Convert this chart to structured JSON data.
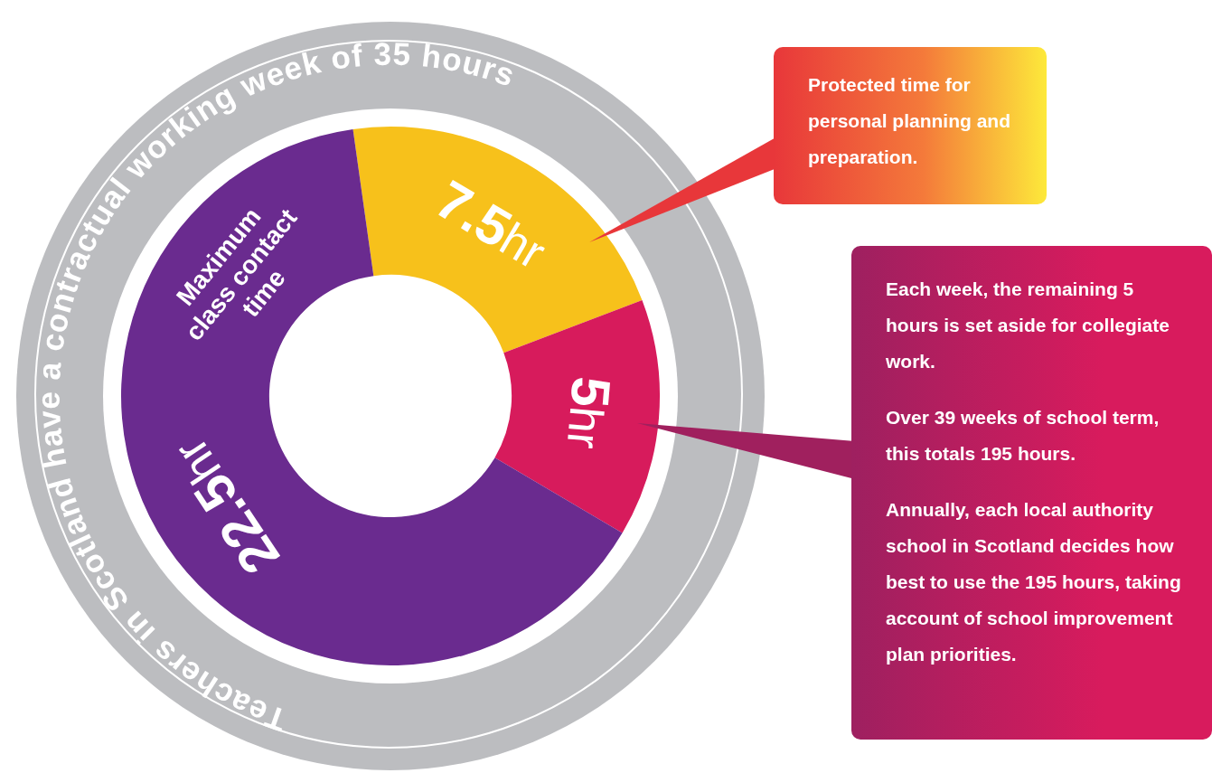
{
  "chart_data": {
    "type": "donut",
    "title": "Teachers in Scotland have a contractual working week of 35 hours",
    "categories": [
      null,
      null,
      "Maximum class contact time"
    ],
    "values": [
      7.5,
      5,
      22.5
    ],
    "colors": [
      "#f7c11b",
      "#d71b5c",
      "#6a2b8f"
    ],
    "value_labels": [
      "7.5hr",
      "5hr",
      "22.5hr"
    ],
    "annotations": [
      "Protected time for personal planning and preparation.",
      "Each week, the remaining 5 hours is set aside for collegiate work.",
      "Over 39 weeks of school term, this totals 195 hours.",
      "Annually, each local authority school in Scotland decides how best to use the 195 hours, taking account of  school improvement plan priorities."
    ],
    "legend": false
  }
}
